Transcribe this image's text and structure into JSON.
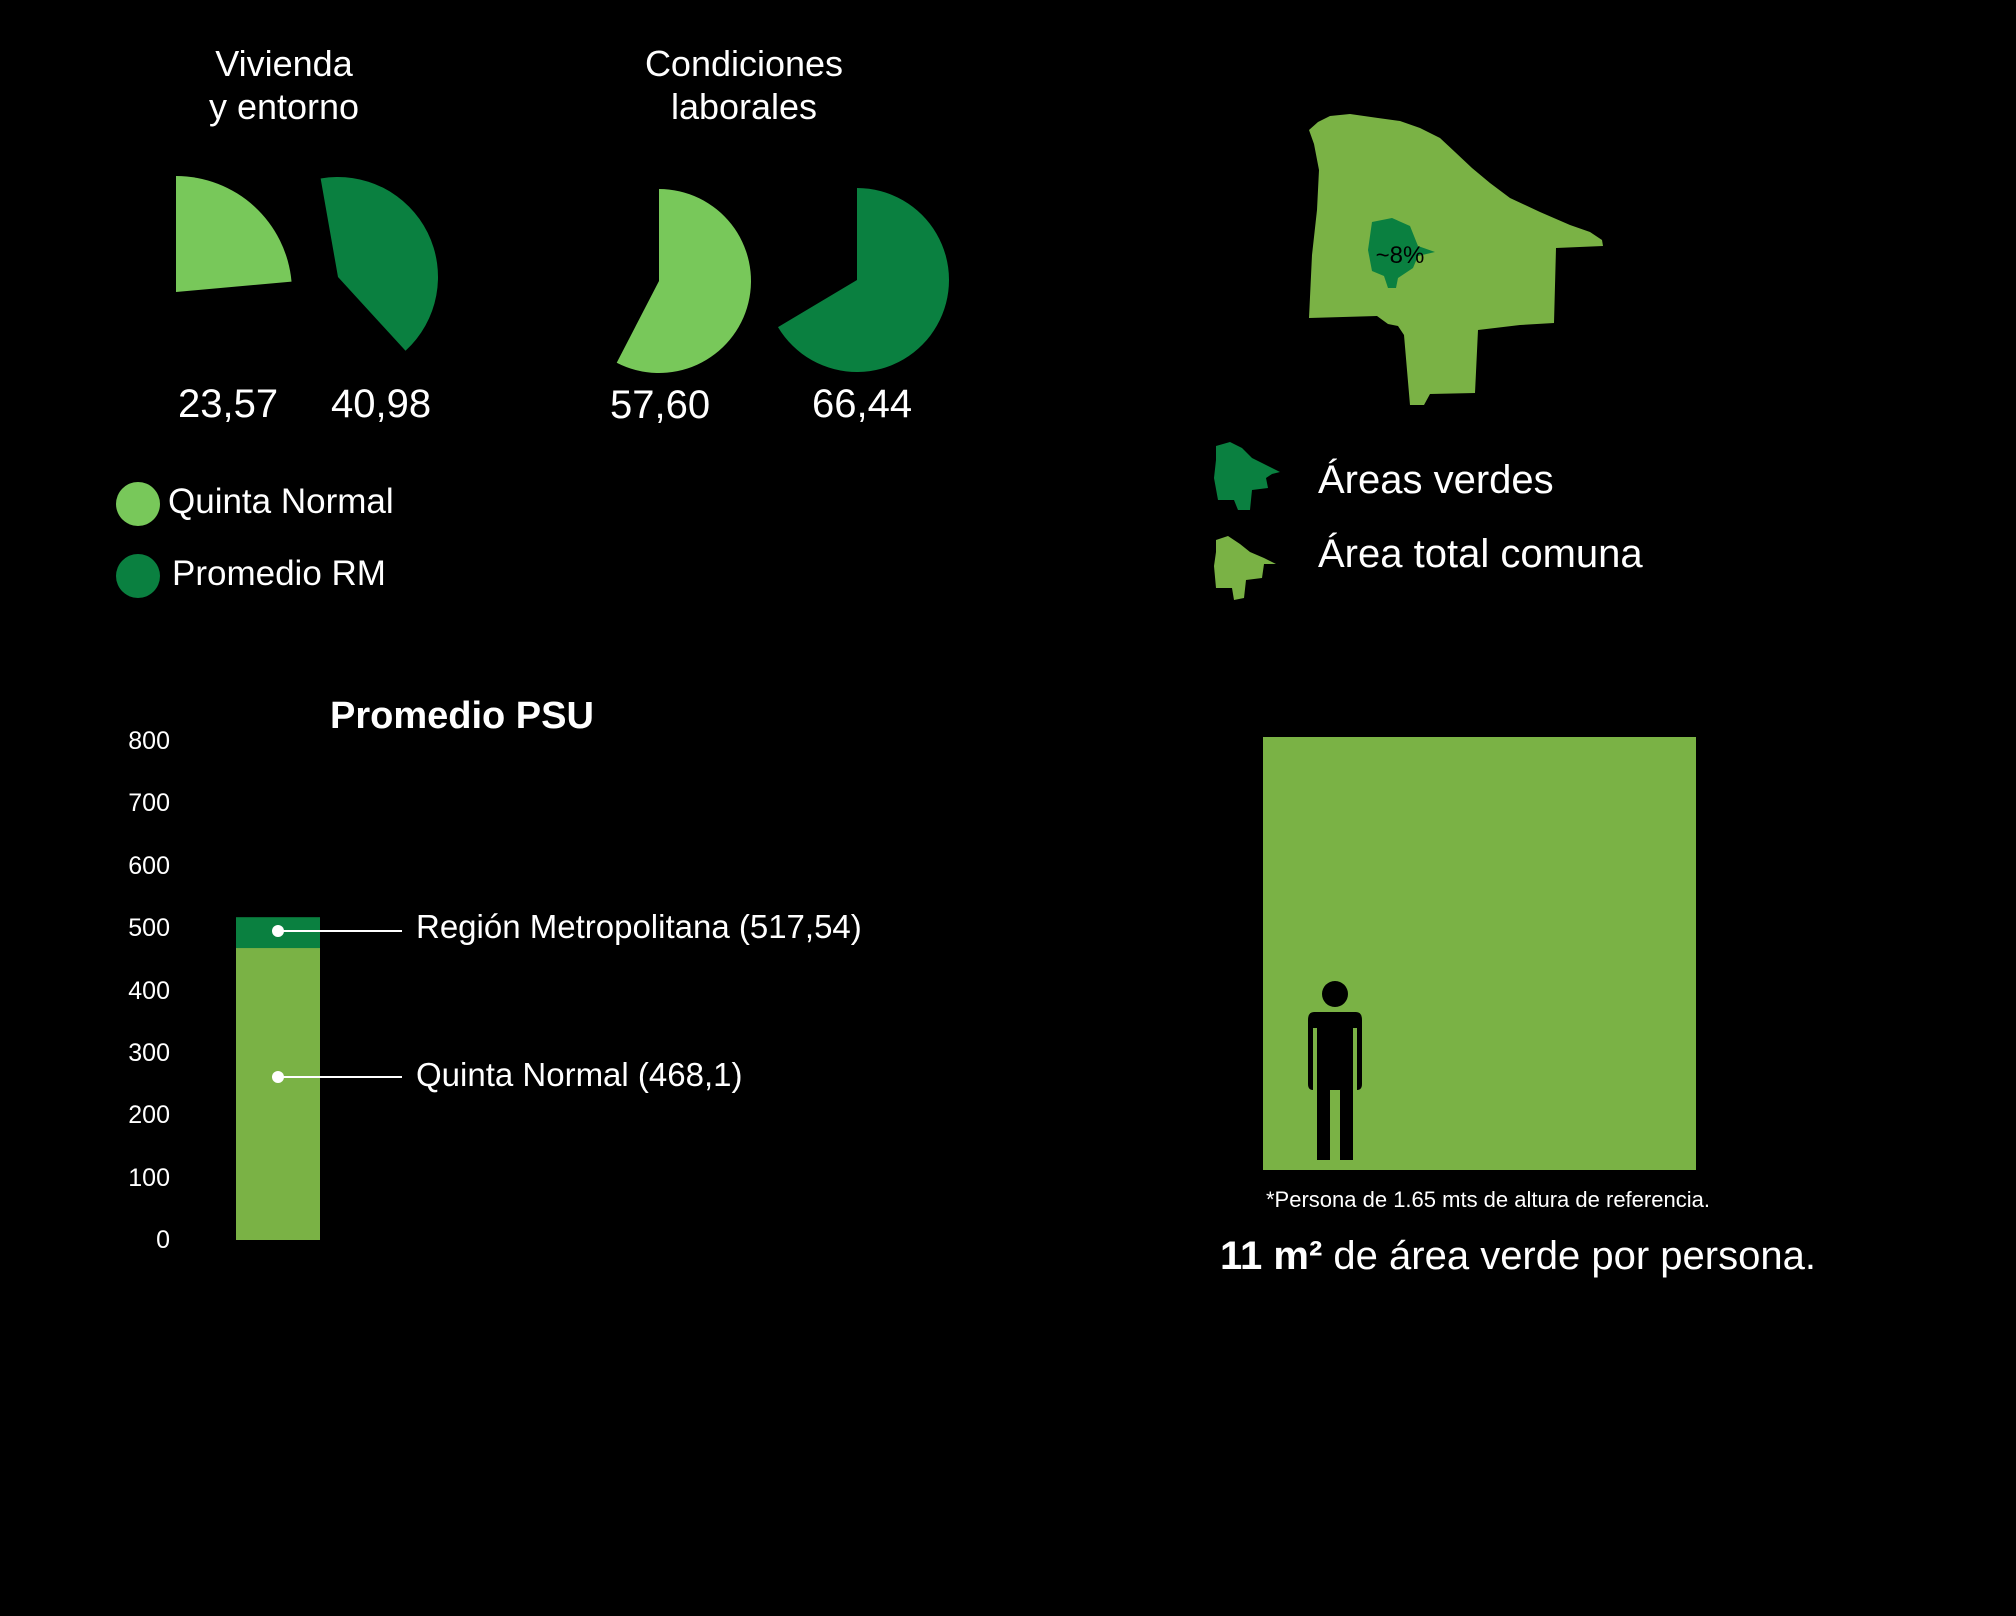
{
  "colors": {
    "quinta_normal": "#78c85a",
    "promedio_rm": "#0a8040",
    "bar_light": "#7ab245",
    "square": "#7ab245",
    "map_area": "#7ab245",
    "map_green": "#0a8040"
  },
  "legend": {
    "items": [
      {
        "label": "Quinta Normal",
        "color": "#78c85a"
      },
      {
        "label": "Promedio RM",
        "color": "#0a8040"
      }
    ]
  },
  "chart_data": [
    {
      "type": "pie",
      "title": "Vivienda\ny entorno",
      "series": [
        {
          "name": "Quinta Normal",
          "value": 23.57,
          "label": "23,57"
        },
        {
          "name": "Promedio RM",
          "value": 40.98,
          "label": "40,98"
        }
      ],
      "max": 100
    },
    {
      "type": "pie",
      "title": "Condiciones\nlaborales",
      "series": [
        {
          "name": "Quinta Normal",
          "value": 57.6,
          "label": "57,60"
        },
        {
          "name": "Promedio RM",
          "value": 66.44,
          "label": "66,44"
        }
      ],
      "max": 100
    },
    {
      "type": "bar",
      "title": "Promedio PSU",
      "ylim": [
        0,
        800
      ],
      "yticks": [
        "0",
        "100",
        "200",
        "300",
        "400",
        "500",
        "600",
        "700",
        "800"
      ],
      "series": [
        {
          "name": "Región Metropolitana",
          "value": 517.54,
          "label": "Región Metropolitana (517,54)"
        },
        {
          "name": "Quinta Normal",
          "value": 468.1,
          "label": "Quinta Normal  (468,1)"
        }
      ]
    }
  ],
  "map": {
    "percent_label": "~8%",
    "green_share": 0.08,
    "legend": [
      {
        "label": "Áreas verdes",
        "icon": "commune-shape-icon",
        "color": "#0a8040"
      },
      {
        "label": "Área total comuna",
        "icon": "commune-shape-icon",
        "color": "#7ab245"
      }
    ]
  },
  "green_area": {
    "note": "*Persona de 1.65 mts de altura de referencia.",
    "headline_bold": "11 m²",
    "headline_rest": " de área verde por persona.",
    "person_icon": "person-icon"
  }
}
